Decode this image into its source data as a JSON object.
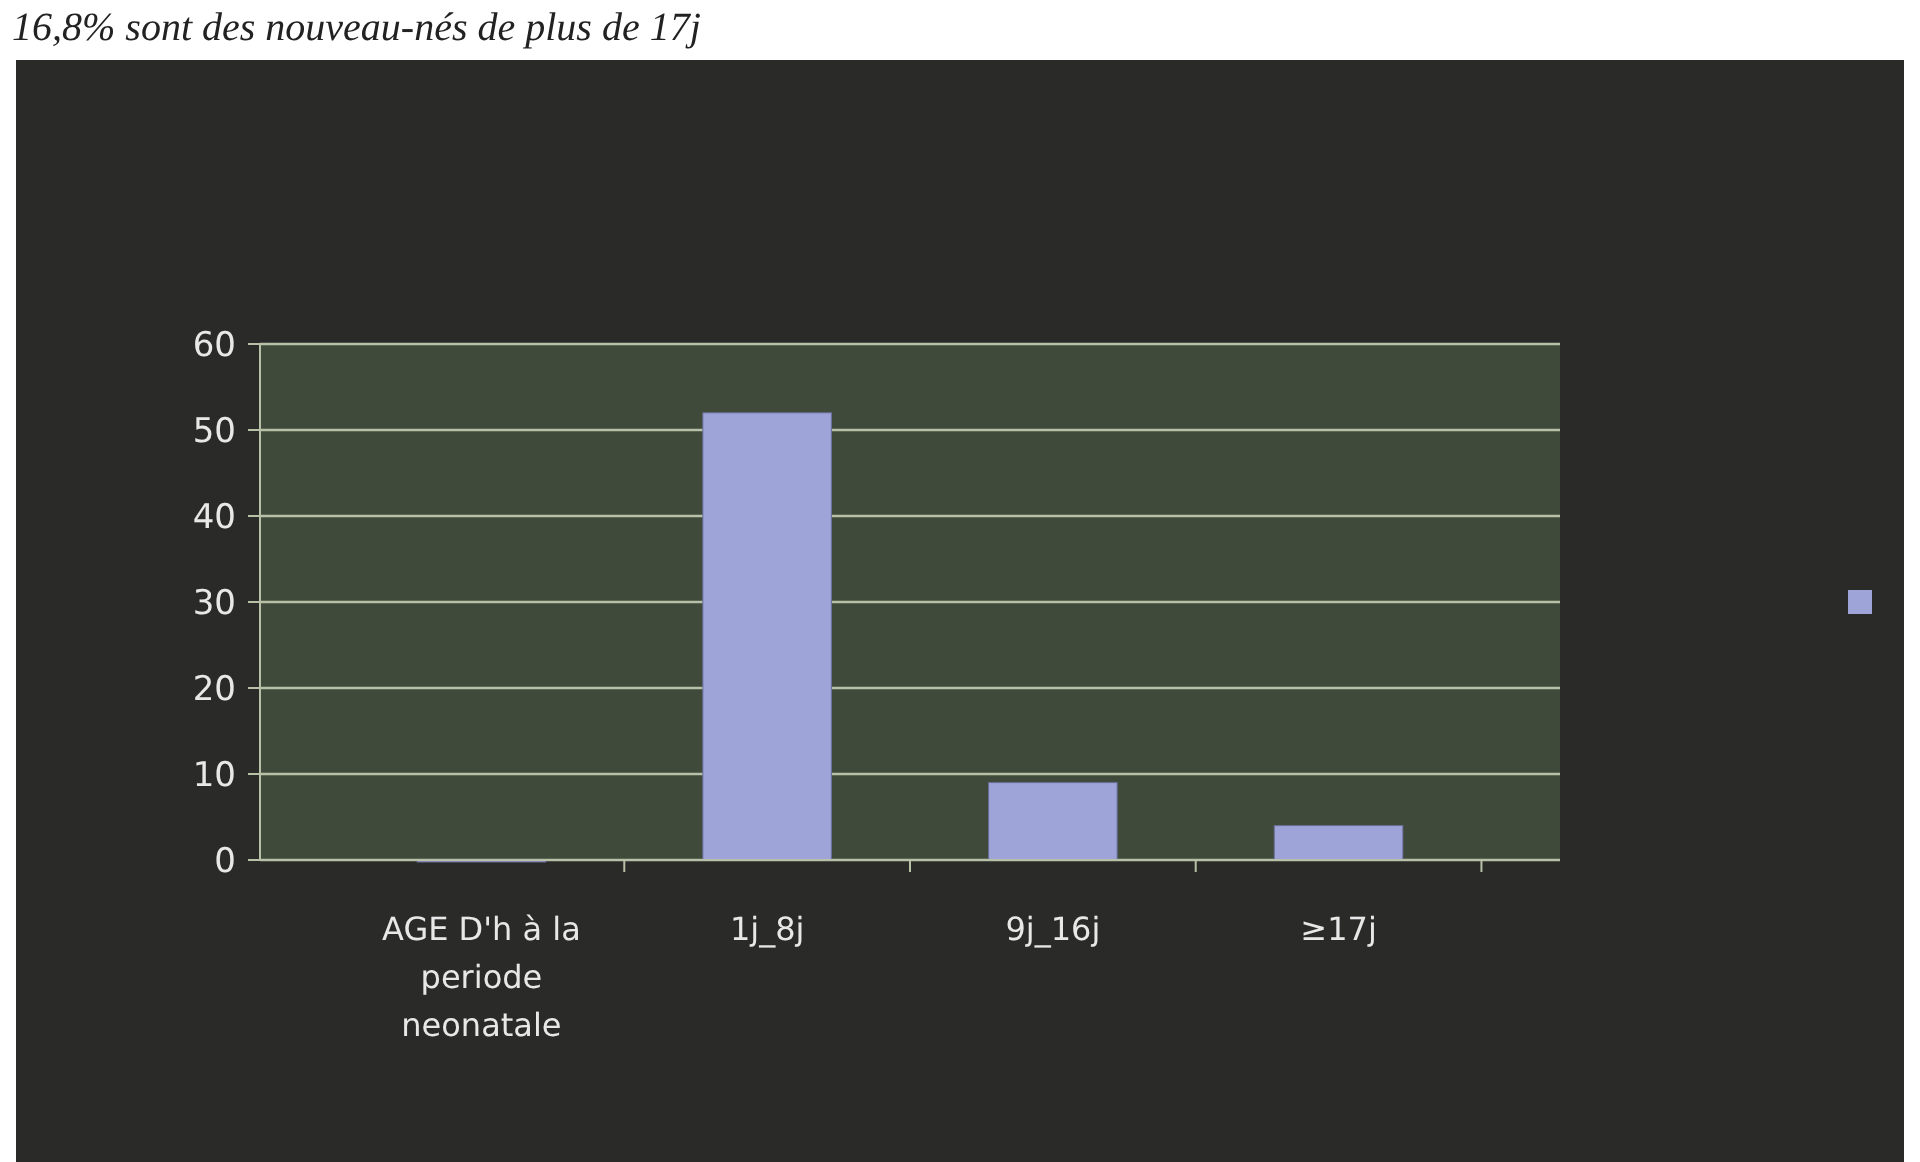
{
  "chart_data": {
    "type": "bar",
    "annotations": [
      "16,8% sont des nouveau-nés de plus de 17j"
    ],
    "categories": [
      "AGE D'h à la periode neonatale",
      "1j_8j",
      "9j_16j",
      "≥17j"
    ],
    "series": [
      {
        "color": "#9ea3d8",
        "values": [
          0,
          52,
          9,
          4
        ]
      }
    ],
    "ylim": [
      0,
      60
    ],
    "yticks": [
      0,
      10,
      20,
      30,
      40,
      50,
      60
    ],
    "grid": "y"
  }
}
